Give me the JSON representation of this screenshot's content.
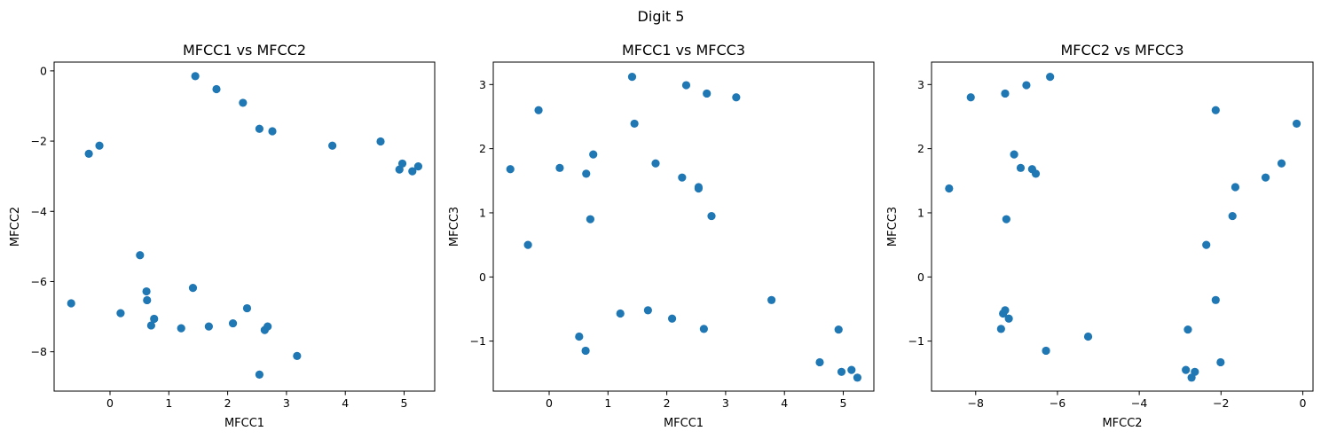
{
  "figure": {
    "suptitle": "Digit 5"
  },
  "colors": {
    "marker": "#1f77b4"
  },
  "chart_data": [
    {
      "type": "scatter",
      "title": "MFCC1 vs MFCC2",
      "xlabel": "MFCC1",
      "ylabel": "MFCC2",
      "xlim": [
        -0.95,
        5.52
      ],
      "ylim": [
        -9.12,
        0.25
      ],
      "xticks": [
        0,
        1,
        2,
        3,
        4,
        5
      ],
      "yticks": [
        -8,
        -6,
        -4,
        -2,
        0
      ],
      "x": [
        -0.66,
        -0.36,
        -0.18,
        0.18,
        0.51,
        0.62,
        0.63,
        0.7,
        0.75,
        1.21,
        1.41,
        1.45,
        1.68,
        1.81,
        2.09,
        2.26,
        2.33,
        2.54,
        2.54,
        2.63,
        2.68,
        2.76,
        3.18,
        3.78,
        4.6,
        4.92,
        4.97,
        5.14,
        5.24
      ],
      "y": [
        -6.62,
        -2.36,
        -2.13,
        -6.9,
        -5.25,
        -6.28,
        -6.53,
        -7.25,
        -7.06,
        -7.33,
        -6.18,
        -0.15,
        -7.28,
        -0.52,
        -7.19,
        -0.91,
        -6.76,
        -1.65,
        -8.65,
        -7.38,
        -7.28,
        -1.72,
        -8.12,
        -2.13,
        -2.01,
        -2.81,
        -2.64,
        -2.86,
        -2.72
      ]
    },
    {
      "type": "scatter",
      "title": "MFCC1 vs MFCC3",
      "xlabel": "MFCC1",
      "ylabel": "MFCC3",
      "xlim": [
        -0.95,
        5.52
      ],
      "ylim": [
        -1.78,
        3.35
      ],
      "xticks": [
        0,
        1,
        2,
        3,
        4,
        5
      ],
      "yticks": [
        -1,
        0,
        1,
        2,
        3
      ],
      "x": [
        -0.66,
        -0.36,
        -0.18,
        0.18,
        0.51,
        0.62,
        0.63,
        0.7,
        0.75,
        1.21,
        1.41,
        1.45,
        1.68,
        1.81,
        2.09,
        2.26,
        2.33,
        2.54,
        2.54,
        2.63,
        2.68,
        2.76,
        3.18,
        3.78,
        4.6,
        4.92,
        4.97,
        5.14,
        5.24
      ],
      "y": [
        1.68,
        0.5,
        2.6,
        1.7,
        -0.93,
        -1.15,
        1.61,
        0.9,
        1.91,
        -0.57,
        3.12,
        2.39,
        -0.52,
        1.77,
        -0.65,
        1.55,
        2.99,
        1.4,
        1.38,
        -0.81,
        2.86,
        0.95,
        2.8,
        -0.36,
        -1.33,
        -0.82,
        -1.48,
        -1.45,
        -1.57
      ]
    },
    {
      "type": "scatter",
      "title": "MFCC2 vs MFCC3",
      "xlabel": "MFCC2",
      "ylabel": "MFCC3",
      "xlim": [
        -9.08,
        0.25
      ],
      "ylim": [
        -1.78,
        3.35
      ],
      "xticks": [
        -8,
        -6,
        -4,
        -2,
        0
      ],
      "yticks": [
        -1,
        0,
        1,
        2,
        3
      ],
      "x": [
        -6.62,
        -2.36,
        -2.13,
        -6.9,
        -5.25,
        -6.28,
        -6.53,
        -7.25,
        -7.06,
        -7.33,
        -6.18,
        -0.15,
        -7.28,
        -0.52,
        -7.19,
        -0.91,
        -6.76,
        -1.65,
        -8.65,
        -7.38,
        -7.28,
        -1.72,
        -8.12,
        -2.13,
        -2.01,
        -2.81,
        -2.64,
        -2.86,
        -2.72
      ],
      "y": [
        1.68,
        0.5,
        2.6,
        1.7,
        -0.93,
        -1.15,
        1.61,
        0.9,
        1.91,
        -0.57,
        3.12,
        2.39,
        -0.52,
        1.77,
        -0.65,
        1.55,
        2.99,
        1.4,
        1.38,
        -0.81,
        2.86,
        0.95,
        2.8,
        -0.36,
        -1.33,
        -0.82,
        -1.48,
        -1.45,
        -1.57
      ]
    }
  ]
}
